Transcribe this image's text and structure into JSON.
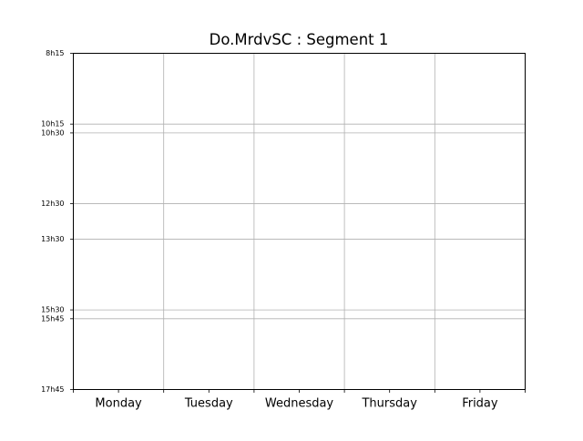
{
  "chart_data": {
    "type": "table",
    "title": "Do.MrdvSC : Segment 1",
    "xlabel": "",
    "ylabel": "",
    "categories": [
      "Monday",
      "Tuesday",
      "Wednesday",
      "Thursday",
      "Friday"
    ],
    "y_ticks": [
      {
        "label": "8h15",
        "minutes": 495
      },
      {
        "label": "10h15",
        "minutes": 615
      },
      {
        "label": "10h30",
        "minutes": 630
      },
      {
        "label": "12h30",
        "minutes": 750
      },
      {
        "label": "13h30",
        "minutes": 810
      },
      {
        "label": "15h30",
        "minutes": 930
      },
      {
        "label": "15h45",
        "minutes": 945
      },
      {
        "label": "17h45",
        "minutes": 1065
      }
    ],
    "ylim": [
      495,
      1065
    ],
    "y_inverted": true,
    "grid": true,
    "series": []
  }
}
